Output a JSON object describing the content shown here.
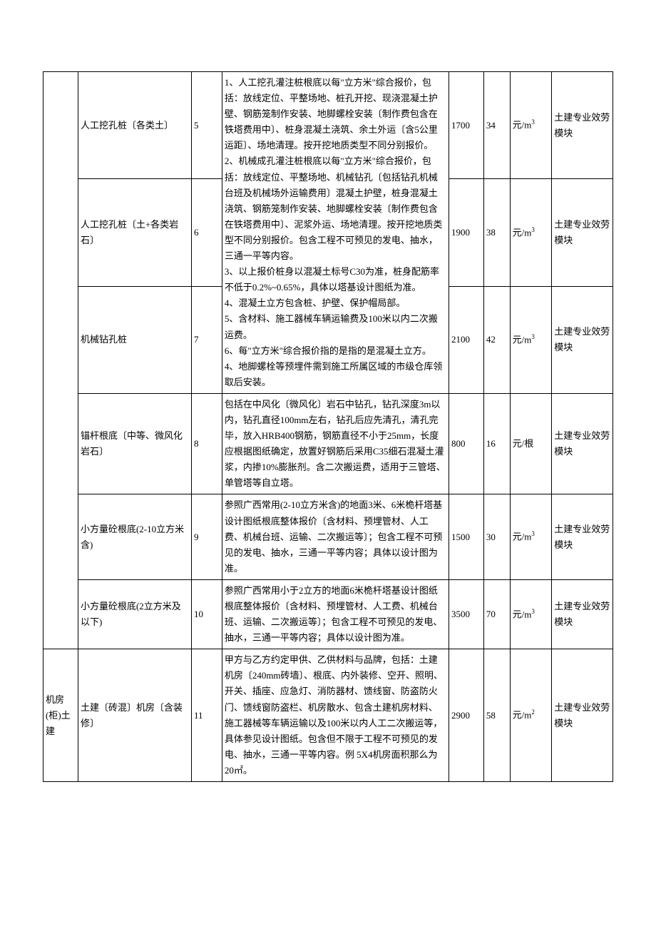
{
  "table": {
    "border_color": "#000000",
    "font_size": 13,
    "rows": [
      {
        "category": "",
        "name": "人工挖孔桩〔各类土〕",
        "num": "5",
        "desc_span": 3,
        "desc": "1、人工挖孔灌注桩根底以每\"立方米\"综合报价，包括：放线定位、平整场地、桩孔开挖、现浇混凝土护壁、钢筋笼制作安装、地脚螺栓安装〔制作费包含在铁塔费用中〕、桩身混凝土浇筑、余土外运〔含5公里运距〕、场地清理。按开挖地质类型不同分别报价。\n2、机械成孔灌注桩根底以每\"立方米\"综合报价，包括：放线定位、平整场地、机械钻孔〔包括钻孔机械台班及机械场外运输费用〕混凝土护壁，桩身混凝土浇筑、钢筋笼制作安装、地脚螺栓安装〔制作费包含在铁塔费用中〕、泥浆外运、场地清理。按开挖地质类型不同分别报价。包含工程不可预见的发电、抽水，三通一平等内容。\n3、以上报价桩身以混凝土标号C30为准，桩身配筋率不低于0.2%~0.65%，具体以塔基设计图纸为准。\n4、混凝土立方包含桩、护壁、保护帽局部。\n5、含材料、施工器械车辆运输费及100米以内二次搬运费。\n6、每\"立方米\"综合报价指的是指的是混凝土立方。\n4、地脚螺栓等预埋件需到施工所属区域的市级仓库领取后安装。",
        "price1": "1700",
        "price2": "34",
        "unit": "元/m³",
        "module": "土建专业效劳模块"
      },
      {
        "category": "",
        "name": "人工挖孔桩〔土+各类岩石〕",
        "num": "6",
        "price1": "1900",
        "price2": "38",
        "unit": "元/m³",
        "module": "土建专业效劳模块"
      },
      {
        "category": "",
        "name": "机械钻孔桩",
        "num": "7",
        "price1": "2100",
        "price2": "42",
        "unit": "元/m³",
        "module": "土建专业效劳模块"
      },
      {
        "category": "",
        "name": "锚杆根底〔中等、微风化岩石〕",
        "num": "8",
        "desc": "包括在中风化〔微风化〕岩石中钻孔，钻孔深度3m以内，钻孔直径100mm左右，钻孔后应先清孔，清孔完毕，放入HRB400钢筋，钢筋直径不小于25mm，长度应根据图纸确定，放置好钢筋后采用C35细石混凝土灌浆，内掺10%膨胀剂。含二次搬运费，适用于三管塔、单管塔等自立塔。",
        "price1": "800",
        "price2": "16",
        "unit": "元/根",
        "module": "土建专业效劳模块"
      },
      {
        "category": "",
        "name": "小方量砼根底(2-10立方米含)",
        "num": "9",
        "desc": "参照广西常用(2-10立方米含)的地面3米、6米桅杆塔基设计图纸根底整体报价〔含材料、预埋管材、人工费、机械台班、运输、二次搬运等〕；包含工程不可预见的发电、抽水，三通一平等内容；具体以设计图为准。",
        "price1": "1500",
        "price2": "30",
        "unit": "元/m³",
        "module": "土建专业效劳模块"
      },
      {
        "category": "",
        "name": "小方量砼根底(2立方米及以下)",
        "num": "10",
        "desc": "参照广西常用小于2立方的地面6米桅杆塔基设计图纸根底整体报价〔含材料、预埋管材、人工费、机械台班、运输、二次搬运等〕；包含工程不可预见的发电、抽水，三通一平等内容；具体以设计图为准。",
        "price1": "3500",
        "price2": "70",
        "unit": "元/m³",
        "module": "土建专业效劳模块"
      },
      {
        "category": "机房(柜)土建",
        "name": "土建〔砖混〕机房〔含装修〕",
        "num": "11",
        "desc": "甲方与乙方约定甲供、乙供材料与品牌，包括：土建机房〔240mm砖墙〕、根底、内外装修、空开、照明、开关、插座、应急灯、消防器材、馈线窗、防盗防火门、馈线窗防盗栏、机房散水、包含土建机房材料、施工器械等车辆运输以及100米以内人工二次搬运等，具体参见设计图纸。包含但不限于工程不可预见的发电、抽水，三通一平等内容。例 5X4机房面积那么为20㎡。",
        "price1": "2900",
        "price2": "58",
        "unit": "元/m²",
        "module": "土建专业效劳模块"
      }
    ],
    "units": {
      "m3": "元/m",
      "m3_sup": "3",
      "root": "元/根",
      "m2": "元/m",
      "m2_sup": "2"
    }
  }
}
